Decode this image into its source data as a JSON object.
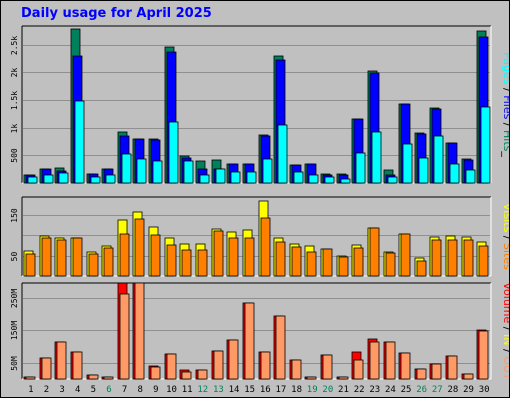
{
  "header": {
    "title": "Daily usage for April 2025"
  },
  "colors": {
    "background": "#c0c0c0",
    "hits": "#00805c",
    "files": "#0000ff",
    "pages": "#00ffff",
    "visits": "#ffff00",
    "sites": "#ff8000",
    "kbytes": "#ff0000",
    "kbytes_out": "#ff9966",
    "weekend": "#00805c"
  },
  "chart_data": {
    "type": "bar",
    "title": "Daily usage for April 2025",
    "x": [
      1,
      2,
      3,
      4,
      5,
      6,
      7,
      8,
      9,
      10,
      11,
      12,
      13,
      14,
      15,
      16,
      17,
      18,
      19,
      20,
      21,
      22,
      23,
      24,
      25,
      26,
      27,
      28,
      29,
      30
    ],
    "x_labels": [
      "1",
      "2",
      "3",
      "4",
      "5",
      "6",
      "7",
      "8",
      "9",
      "10",
      "11",
      "12",
      "13",
      "14",
      "15",
      "16",
      "17",
      "18",
      "19",
      "20",
      "21",
      "22",
      "23",
      "24",
      "25",
      "26",
      "27",
      "28",
      "29",
      "30"
    ],
    "weekend_days": [
      6,
      12,
      13,
      19,
      20,
      26,
      27
    ],
    "panels": [
      {
        "id": "hits",
        "ylabel_parts": [
          {
            "text": "Pages",
            "color": "#00ffff"
          },
          {
            "text": " / ",
            "color": "#000000"
          },
          {
            "text": "Files",
            "color": "#0000ff"
          },
          {
            "text": " / ",
            "color": "#000000"
          },
          {
            "text": "Hits",
            "color": "#00805c"
          },
          {
            "text": "_",
            "color": "#000000"
          }
        ],
        "ylim": [
          0,
          2800
        ],
        "ticks": [
          500,
          1000,
          1500,
          2000,
          2500
        ],
        "tick_labels": [
          "500",
          "1k",
          "1.5k",
          "2k",
          "2.5k"
        ],
        "series": [
          {
            "name": "Hits",
            "color": "#00805c",
            "values": [
              150,
              250,
              270,
              2780,
              160,
              250,
              930,
              800,
              800,
              2450,
              490,
              400,
              410,
              350,
              350,
              860,
              2300,
              330,
              350,
              160,
              170,
              1160,
              2030,
              230,
              1430,
              900,
              1360,
              720,
              440,
              2740
            ]
          },
          {
            "name": "Files",
            "color": "#0000ff",
            "values": [
              150,
              250,
              210,
              2300,
              160,
              250,
              850,
              790,
              780,
              2360,
              450,
              250,
              250,
              350,
              340,
              850,
              2230,
              330,
              340,
              150,
              150,
              1160,
              1980,
              150,
              1430,
              890,
              1330,
              720,
              410,
              2640
            ]
          },
          {
            "name": "Pages",
            "color": "#00ffff",
            "values": [
              100,
              150,
              180,
              1480,
              100,
              150,
              520,
              430,
              400,
              1110,
              400,
              150,
              250,
              200,
              200,
              440,
              1050,
              200,
              150,
              100,
              80,
              540,
              930,
              100,
              700,
              460,
              850,
              340,
              240,
              1380
            ]
          }
        ]
      },
      {
        "id": "visits",
        "ylabel_parts": [
          {
            "text": "Visits",
            "color": "#ffff00"
          },
          {
            "text": " / ",
            "color": "#000000"
          },
          {
            "text": "Sites",
            "color": "#ff8000"
          }
        ],
        "ylim": [
          0,
          190
        ],
        "ticks": [
          50,
          100,
          150
        ],
        "tick_labels": [
          "50",
          "",
          "150"
        ],
        "series": [
          {
            "name": "Visits",
            "color": "#ffff00",
            "values": [
              62,
              98,
              94,
              95,
              60,
              73,
              137,
              157,
              122,
              93,
              80,
              80,
              116,
              109,
              113,
              184,
              93,
              80,
              74,
              67,
              50,
              76,
              118,
              58,
              104,
              44,
              97,
              98,
              96,
              84
            ]
          },
          {
            "name": "Sites",
            "color": "#ff8000",
            "values": [
              55,
              94,
              89,
              95,
              54,
              68,
              104,
              141,
              100,
              77,
              64,
              63,
              110,
              95,
              93,
              142,
              84,
              72,
              60,
              67,
              48,
              70,
              118,
              56,
              103,
              37,
              88,
              88,
              88,
              73
            ]
          }
        ]
      },
      {
        "id": "volume",
        "ylabel_parts": [
          {
            "text": "Volume",
            "color": "#ff0000"
          },
          {
            "text": " / ",
            "color": "#000000"
          },
          {
            "text": "IN",
            "color": "#ffff00"
          },
          {
            "text": " / ",
            "color": "#000000"
          },
          {
            "text": "OUT",
            "color": "#ff9966"
          }
        ],
        "ylim": [
          0,
          290
        ],
        "ticks": [
          50,
          150,
          250
        ],
        "tick_labels": [
          "50M",
          "150M",
          "250M"
        ],
        "series": [
          {
            "name": "Volume",
            "color": "#ff0000",
            "values": [
              6,
              65,
              113,
              84,
              13,
              6,
              296,
              296,
              41,
              76,
              27,
              28,
              87,
              121,
              234,
              84,
              193,
              60,
              6,
              73,
              6,
              83,
              122,
              113,
              81,
              30,
              45,
              72,
              14,
              150
            ]
          },
          {
            "name": "OUT",
            "color": "#ff9966",
            "values": [
              6,
              65,
              113,
              84,
              13,
              6,
              262,
              296,
              38,
              76,
              23,
              28,
              87,
              121,
              234,
              84,
              193,
              60,
              6,
              73,
              6,
              59,
              115,
              113,
              81,
              30,
              45,
              72,
              14,
              148
            ]
          }
        ]
      }
    ]
  }
}
